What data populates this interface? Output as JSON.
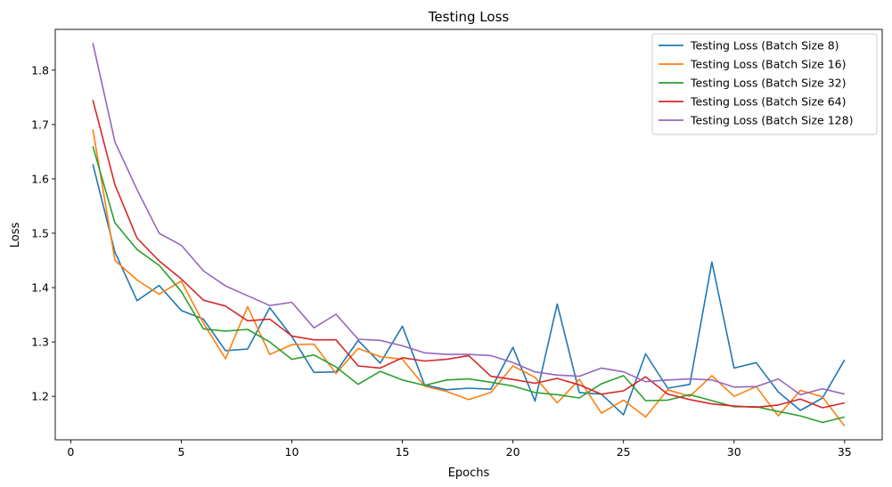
{
  "chart_data": {
    "type": "line",
    "title": "Testing Loss",
    "xlabel": "Epochs",
    "ylabel": "Loss",
    "xlim": [
      -0.7,
      36.7
    ],
    "ylim": [
      1.12,
      1.875
    ],
    "xticks": [
      0,
      5,
      10,
      15,
      20,
      25,
      30,
      35
    ],
    "yticks": [
      1.2,
      1.3,
      1.4,
      1.5,
      1.6,
      1.7,
      1.8
    ],
    "grid": false,
    "legend_position": "top-right",
    "x": [
      1,
      2,
      3,
      4,
      5,
      6,
      7,
      8,
      9,
      10,
      11,
      12,
      13,
      14,
      15,
      16,
      17,
      18,
      19,
      20,
      21,
      22,
      23,
      24,
      25,
      26,
      27,
      28,
      29,
      30,
      31,
      32,
      33,
      34,
      35
    ],
    "series": [
      {
        "name": "Testing Loss (Batch Size 8)",
        "color": "#1f77b4",
        "values": [
          1.627,
          1.465,
          1.376,
          1.404,
          1.358,
          1.342,
          1.284,
          1.287,
          1.363,
          1.31,
          1.244,
          1.245,
          1.303,
          1.261,
          1.329,
          1.221,
          1.212,
          1.215,
          1.213,
          1.29,
          1.191,
          1.37,
          1.207,
          1.204,
          1.166,
          1.278,
          1.215,
          1.222,
          1.447,
          1.252,
          1.262,
          1.208,
          1.174,
          1.197,
          1.267
        ]
      },
      {
        "name": "Testing Loss (Batch Size 16)",
        "color": "#ff7f0e",
        "values": [
          1.691,
          1.45,
          1.414,
          1.388,
          1.412,
          1.335,
          1.269,
          1.365,
          1.277,
          1.295,
          1.296,
          1.242,
          1.288,
          1.273,
          1.268,
          1.219,
          1.209,
          1.194,
          1.207,
          1.256,
          1.235,
          1.188,
          1.231,
          1.169,
          1.193,
          1.162,
          1.212,
          1.2,
          1.238,
          1.2,
          1.218,
          1.164,
          1.211,
          1.199,
          1.145
        ]
      },
      {
        "name": "Testing Loss (Batch Size 32)",
        "color": "#2ca02c",
        "values": [
          1.66,
          1.519,
          1.47,
          1.441,
          1.393,
          1.324,
          1.32,
          1.323,
          1.3,
          1.268,
          1.276,
          1.254,
          1.222,
          1.246,
          1.23,
          1.22,
          1.23,
          1.232,
          1.226,
          1.219,
          1.207,
          1.203,
          1.197,
          1.223,
          1.238,
          1.192,
          1.193,
          1.203,
          1.192,
          1.181,
          1.181,
          1.172,
          1.164,
          1.152,
          1.162
        ]
      },
      {
        "name": "Testing Loss (Batch Size 64)",
        "color": "#d62728",
        "values": [
          1.745,
          1.589,
          1.491,
          1.449,
          1.416,
          1.377,
          1.366,
          1.339,
          1.342,
          1.311,
          1.304,
          1.304,
          1.256,
          1.252,
          1.271,
          1.265,
          1.268,
          1.275,
          1.237,
          1.231,
          1.224,
          1.233,
          1.221,
          1.204,
          1.21,
          1.236,
          1.204,
          1.194,
          1.186,
          1.182,
          1.18,
          1.184,
          1.195,
          1.179,
          1.188
        ]
      },
      {
        "name": "Testing Loss (Batch Size 128)",
        "color": "#9467bd",
        "values": [
          1.85,
          1.668,
          1.58,
          1.5,
          1.478,
          1.431,
          1.403,
          1.385,
          1.367,
          1.373,
          1.326,
          1.351,
          1.305,
          1.303,
          1.293,
          1.28,
          1.277,
          1.277,
          1.275,
          1.262,
          1.245,
          1.239,
          1.237,
          1.252,
          1.245,
          1.227,
          1.23,
          1.232,
          1.23,
          1.217,
          1.218,
          1.232,
          1.203,
          1.214,
          1.204
        ]
      }
    ]
  }
}
